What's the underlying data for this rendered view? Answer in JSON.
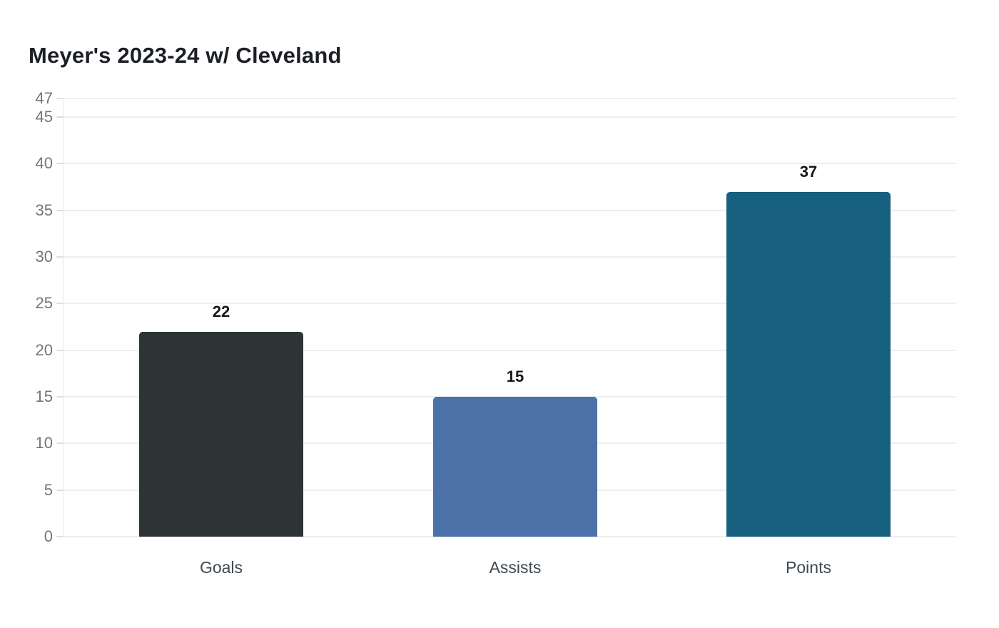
{
  "page": {
    "background": "#ffffff"
  },
  "chart_data": {
    "type": "bar",
    "title": "Meyer's 2023-24 w/ Cleveland",
    "categories": [
      "Goals",
      "Assists",
      "Points"
    ],
    "values": [
      22,
      15,
      37
    ],
    "value_labels": [
      "22",
      "15",
      "37"
    ],
    "bar_colors": [
      "#2d3436",
      "#4c71a8",
      "#17607f"
    ],
    "xlabel": "",
    "ylabel": "",
    "y_ticks": [
      0,
      5,
      10,
      15,
      20,
      25,
      30,
      35,
      40,
      45,
      47
    ],
    "ylim": [
      0,
      47
    ],
    "grid": true,
    "legend": false,
    "colors": {
      "title": "#1c2024",
      "tick_label": "#6f7680",
      "category_label": "#3e4953",
      "value_label": "#14181c",
      "gridline": "#eeeeee",
      "tick_mark": "#dcdfe2",
      "axis_line": "#e5e7ea"
    }
  }
}
